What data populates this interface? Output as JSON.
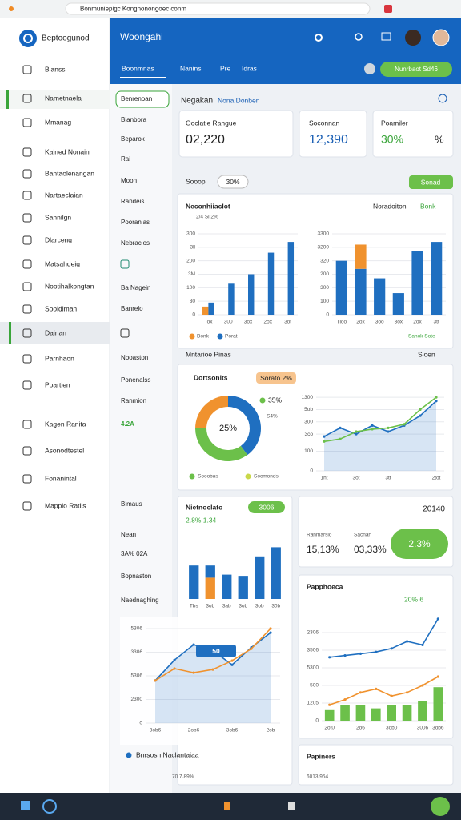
{
  "browser": {
    "url": "Bonmuniepigc Kongnonongoec.conm"
  },
  "sidebar": {
    "brand": "Beptoogunod",
    "items": [
      "Blanss",
      "Nametnaela",
      "Mmanag",
      "Kalned Nonain",
      "Bantaolenangan",
      "Nartaeclaian",
      "Sannilgn",
      "Dlarceng",
      "Matsahdeig",
      "Nootihalkongtan",
      "Sooldiman",
      "Dainan",
      "Parnhaon",
      "Poartien",
      "Kagen Ranita",
      "Asonodtestel",
      "Fonanintal",
      "Mapplo Ratlis"
    ]
  },
  "subnav": {
    "items": [
      "Benrenoan",
      "Bianbora",
      "Beparok",
      "Rai",
      "Moon",
      "Randeis",
      "Pooranlas",
      "Nebraclos",
      "Ba Nagein",
      "Banrelo",
      "Nboaston",
      "Ponenalss",
      "Ranmion",
      "4.2A",
      "Bimaus",
      "Nean",
      "3A% 02A",
      "Bopnaston",
      "Naednaghing"
    ]
  },
  "header": {
    "title": "Woongahi",
    "tabs": [
      "Boonmnas",
      "Nanins",
      "Pre",
      "Idras"
    ],
    "button": "Nunrbaot Sd46"
  },
  "main": {
    "heading": "Negakan",
    "link": "Nona Donben",
    "stats": [
      {
        "label": "Ooclatle Rangue",
        "value": "02,220"
      },
      {
        "label": "Soconnan",
        "value": "12,390"
      },
      {
        "label": "Poamiler",
        "value": "30%",
        "unit": "%"
      }
    ],
    "filter": {
      "label": "Sooop",
      "chip": "30%",
      "button": "Sonad"
    },
    "panel1": {
      "title": "Neconhiiaclot",
      "subtitle": "2/4 Si 2%",
      "right_label": "Noradoiton",
      "right_badge": "Bonk",
      "link": "Sanok Sote"
    },
    "section": {
      "title": "Mntarioe Pinas",
      "link": "Sloen"
    },
    "panel2": {
      "title": "Dortsonits",
      "badge": "Sorato 2%"
    },
    "panel3": {
      "title": "Nietnoclato",
      "pill": "3006",
      "subtitle": "2.8% 1.34"
    },
    "card": {
      "title": "20140",
      "labels": [
        "Ranmarsio",
        "Sacnan"
      ],
      "values": [
        "15,13%",
        "03,33%"
      ],
      "pill": "2.3%"
    },
    "panel4": {
      "title": "Papphoeca",
      "badge": "20% 6"
    },
    "panel5": {
      "title": "Papiners",
      "value": "6013.954"
    },
    "panel6": {
      "badge": "50",
      "legend": "Bnrsosn Naclantaiaa",
      "footer": "70 7.89%"
    }
  },
  "charts": [
    {
      "type": "bar",
      "categories": [
        "Tox",
        "300",
        "3ox",
        "2ox",
        "3ot"
      ],
      "series": [
        {
          "name": "Bonk",
          "color": "#f0922e",
          "values": [
            30,
            null,
            null,
            null,
            null
          ]
        },
        {
          "name": "Porat",
          "color": "#1f6fc0",
          "values": [
            45,
            115,
            150,
            230,
            270
          ]
        }
      ],
      "ylim": [
        0,
        300
      ],
      "yticks": [
        0,
        {
          "value": 50,
          "label": "30"
        },
        100,
        {
          "value": 150,
          "label": "3M"
        },
        200,
        {
          "value": 250,
          "label": "3ll"
        },
        300
      ]
    },
    {
      "type": "bar",
      "stacked": true,
      "categories": [
        "Tloo",
        "2ox",
        "3oo",
        "3ox",
        "2ox",
        "3tt"
      ],
      "series": [
        {
          "color": "#1f6fc0",
          "values": [
            200,
            170,
            135,
            80,
            235,
            270
          ]
        },
        {
          "color": "#f0922e",
          "values": [
            null,
            90,
            null,
            null,
            null,
            null
          ]
        }
      ],
      "ylim": [
        0,
        300
      ],
      "yticks": [
        0,
        {
          "value": 50,
          "label": "100"
        },
        {
          "value": 100,
          "label": "300"
        },
        {
          "value": 150,
          "label": "200"
        },
        {
          "value": 200,
          "label": "320"
        },
        {
          "value": 250,
          "label": "3200"
        },
        {
          "value": 300,
          "label": "3300"
        }
      ]
    },
    {
      "type": "donut",
      "center_label": "25%",
      "annotations": [
        "35%",
        "S4%"
      ],
      "segments": [
        {
          "name": "Sooobas",
          "color": "#1f6fc0",
          "value": 40
        },
        {
          "name": "Socmonds",
          "color": "#6cc04a",
          "value": 35
        },
        {
          "color": "#f0922e",
          "value": 25
        }
      ]
    },
    {
      "type": "line",
      "categories": [
        "1ht",
        null,
        "3ot",
        null,
        "3tt",
        null,
        null,
        "2tot"
      ],
      "series": [
        {
          "color": "#1f6fc0",
          "area": true,
          "values": [
            140,
            175,
            150,
            185,
            160,
            185,
            225,
            285
          ]
        },
        {
          "color": "#6cc04a",
          "values": [
            120,
            130,
            160,
            170,
            175,
            190,
            250,
            300
          ]
        }
      ],
      "ylim": [
        0,
        320
      ],
      "yticks": [
        0,
        {
          "value": 80,
          "label": "100"
        },
        {
          "value": 150,
          "label": "3co"
        },
        {
          "value": 200,
          "label": "300"
        },
        {
          "value": 250,
          "label": "5ob"
        },
        {
          "value": 300,
          "label": "1300"
        }
      ]
    },
    {
      "type": "bar",
      "stacked": true,
      "categories": [
        "Tbs",
        "3ob",
        "3ab",
        "3ob",
        "3ob",
        "30b"
      ],
      "series": [
        {
          "color": "#f0922e",
          "values": [
            null,
            35,
            null,
            null,
            null,
            null
          ]
        },
        {
          "color": "#1f6fc0",
          "values": [
            55,
            20,
            40,
            38,
            70,
            85
          ]
        }
      ],
      "ylim": [
        0,
        100
      ]
    },
    {
      "type": "combo",
      "categories": [
        "2ot0",
        null,
        "2o6",
        null,
        "3ob0",
        null,
        "3006",
        "3ob6"
      ],
      "series": [
        {
          "kind": "bar",
          "color": "#6cc04a",
          "values": [
            30,
            45,
            45,
            35,
            45,
            45,
            55,
            95
          ]
        },
        {
          "kind": "line",
          "color": "#1f6fc0",
          "values": [
            180,
            185,
            190,
            195,
            205,
            225,
            215,
            289
          ]
        },
        {
          "kind": "line",
          "color": "#f0922e",
          "values": [
            45,
            60,
            80,
            90,
            70,
            80,
            100,
            125
          ]
        }
      ],
      "ylim": [
        0,
        300
      ],
      "yticks": [
        0,
        {
          "value": 50,
          "label": "1205"
        },
        {
          "value": 100,
          "label": "500"
        },
        {
          "value": 150,
          "label": "5300"
        },
        {
          "value": 200,
          "label": "3506"
        },
        {
          "value": 250,
          "label": "2306"
        }
      ]
    },
    {
      "type": "line",
      "categories": [
        "3ob6",
        null,
        "2ob6",
        null,
        "3ob6",
        null,
        "2ob"
      ],
      "series": [
        {
          "color": "#1f6fc0",
          "area": true,
          "values": [
            135,
            200,
            249,
            230,
            185,
            240,
            287
          ]
        },
        {
          "color": "#f0922e",
          "values": [
            135,
            173,
            160,
            170,
            198,
            236,
            300
          ]
        }
      ],
      "ylim": [
        0,
        300
      ],
      "yticks": [
        0,
        {
          "value": 75,
          "label": "2300"
        },
        {
          "value": 150,
          "label": "5306"
        },
        {
          "value": 225,
          "label": "3306"
        },
        {
          "value": 300,
          "label": "5306"
        }
      ]
    }
  ]
}
